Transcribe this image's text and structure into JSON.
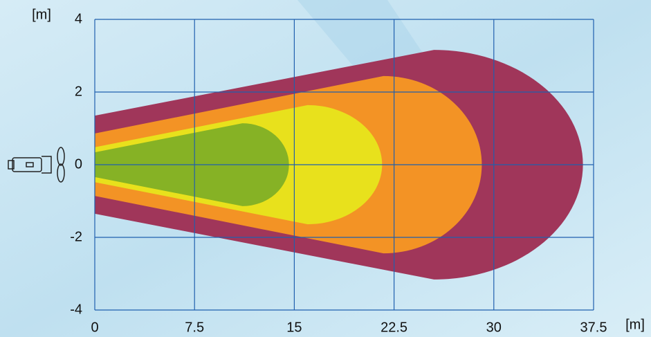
{
  "chart_data": {
    "type": "zones",
    "xlabel": "[m]",
    "ylabel": "[m]",
    "xlim": [
      0,
      37.5
    ],
    "xticks": [
      0,
      7.5,
      15,
      22.5,
      30,
      37.5
    ],
    "ylim": [
      -4,
      4
    ],
    "yticks": [
      -4,
      -2,
      0,
      2,
      4
    ],
    "grid": true,
    "grid_color": "#1f5fae",
    "zones": [
      {
        "color": "#a0365a",
        "start_half_width": 1.35,
        "peak_x": 25.5,
        "peak_half_width": 3.16,
        "reach": 36.7
      },
      {
        "color": "#f39325",
        "start_half_width": 0.86,
        "peak_x": 21.7,
        "peak_half_width": 2.44,
        "reach": 29.1
      },
      {
        "color": "#e8e11c",
        "start_half_width": 0.48,
        "peak_x": 16,
        "peak_half_width": 1.64,
        "reach": 21.6
      },
      {
        "color": "#86b225",
        "start_half_width": 0.34,
        "peak_x": 11.1,
        "peak_half_width": 1.14,
        "reach": 14.6
      }
    ]
  }
}
